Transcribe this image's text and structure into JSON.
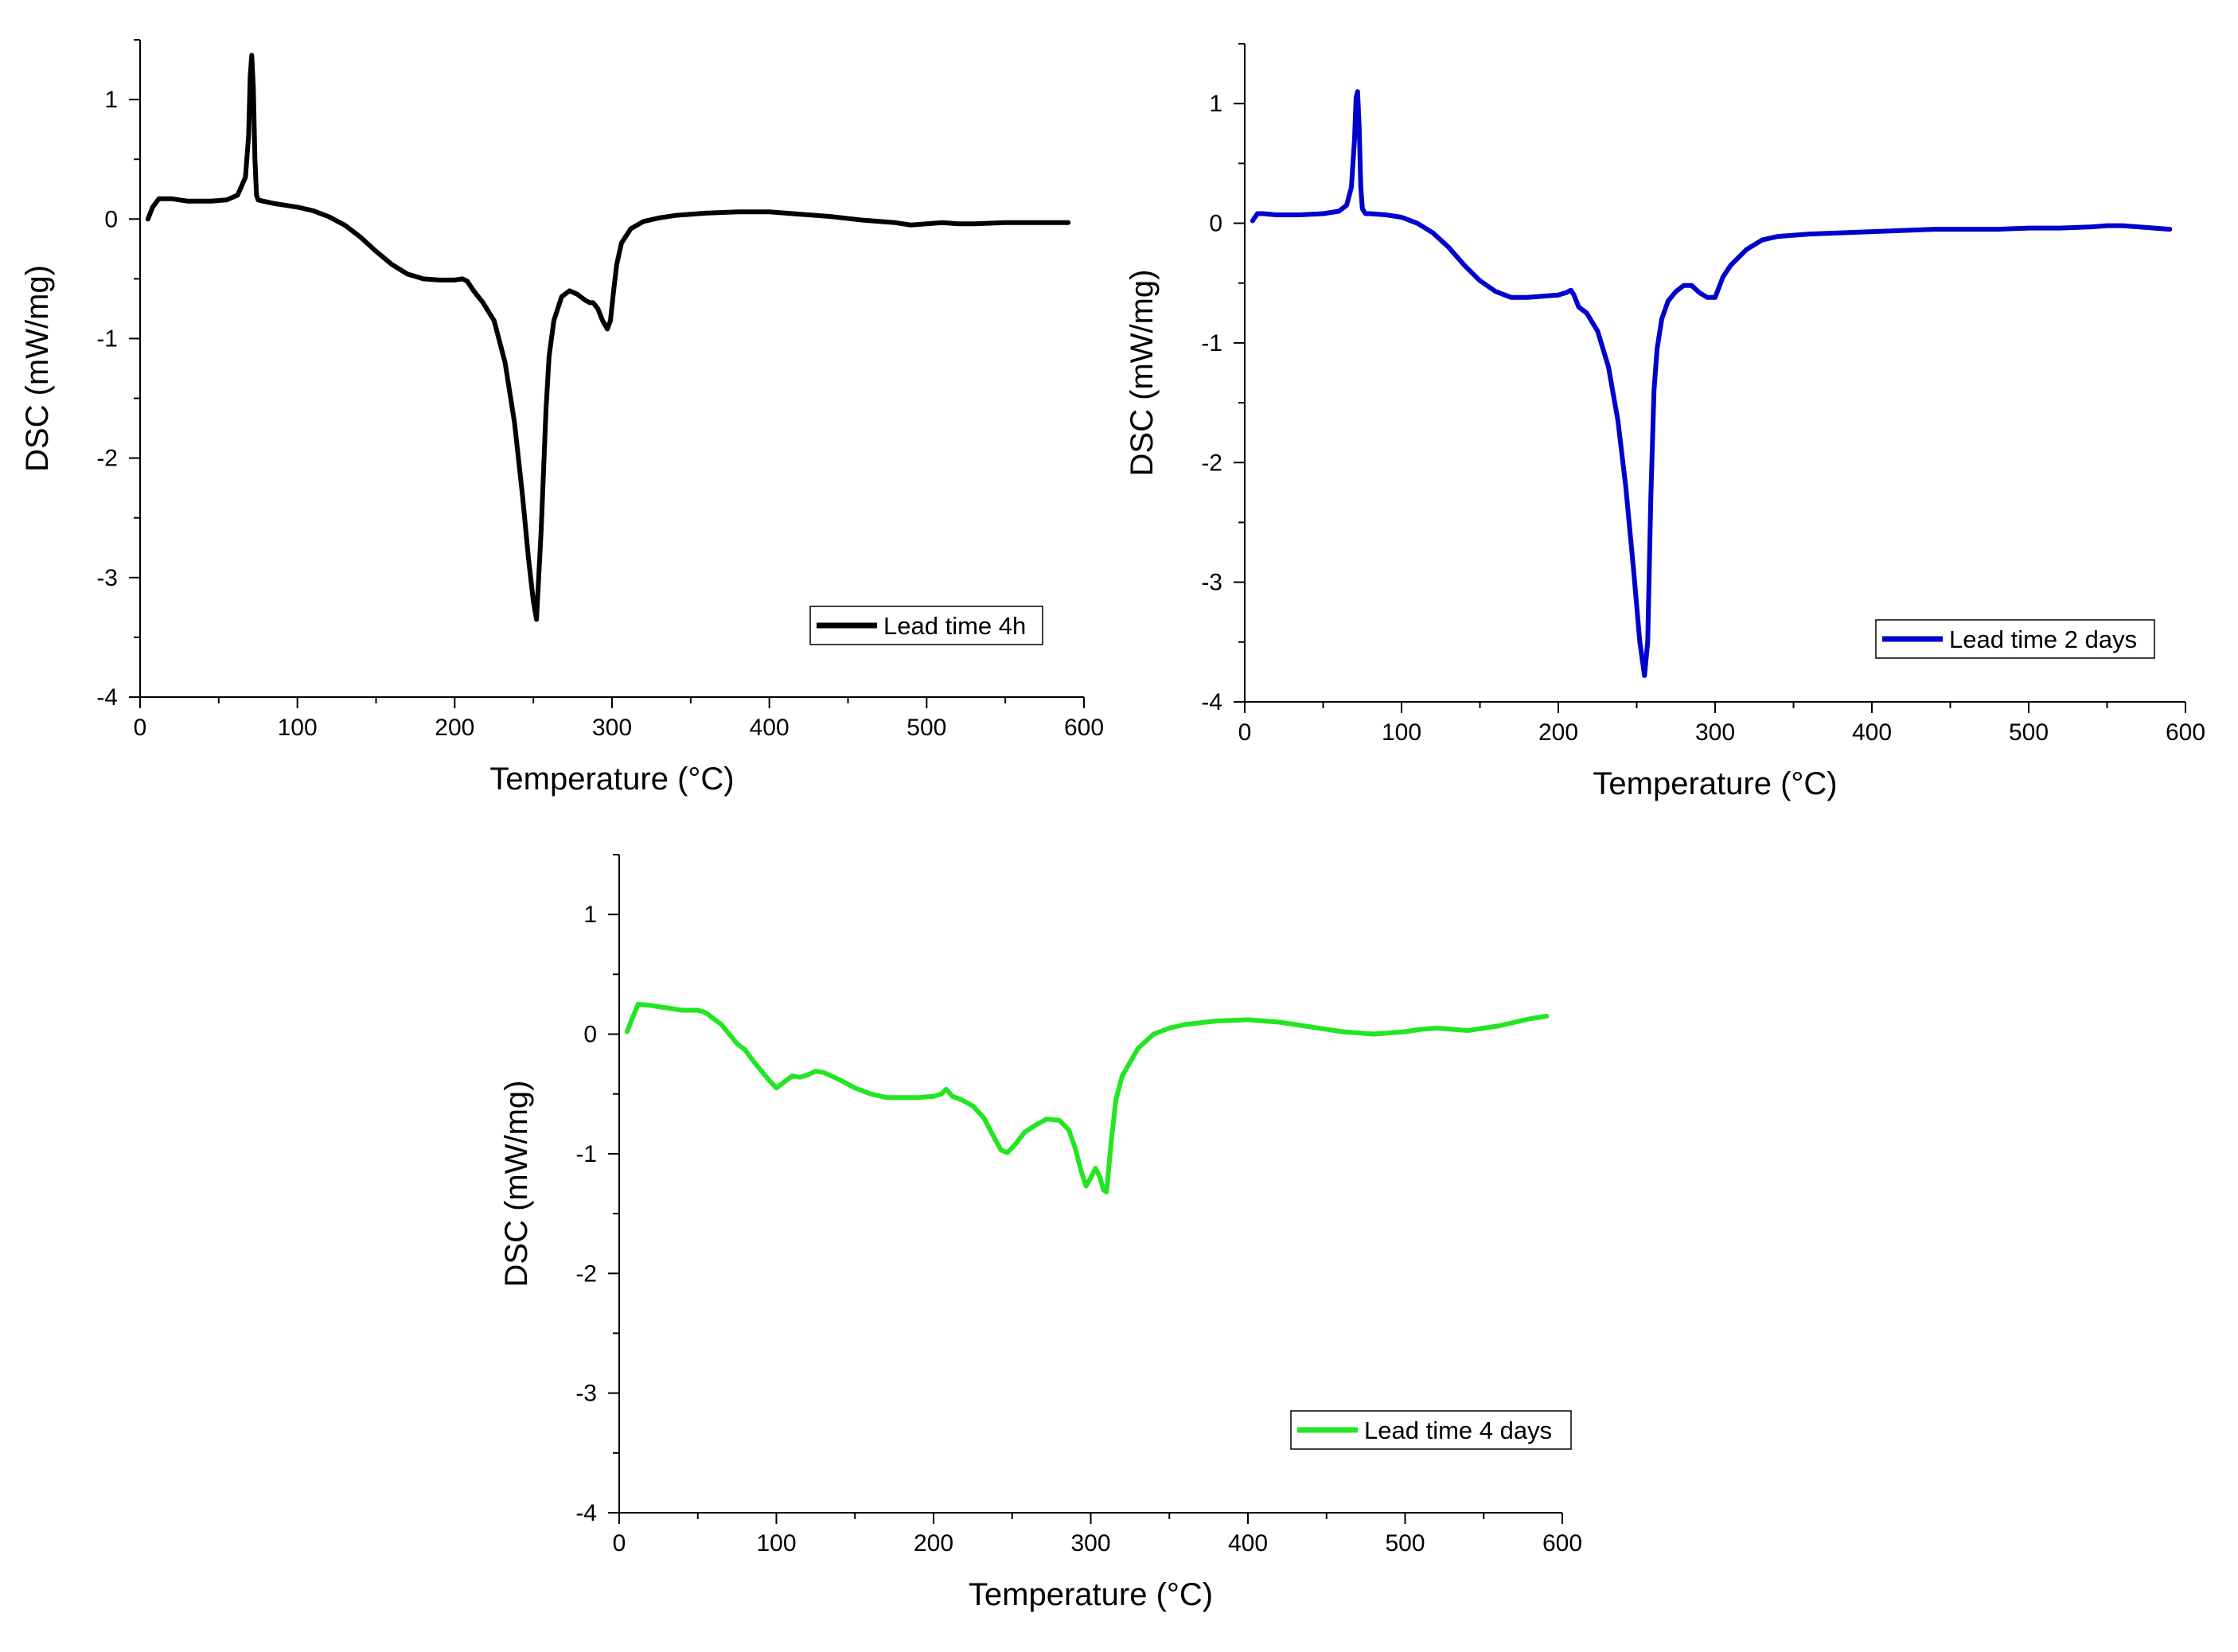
{
  "chart_data": [
    {
      "type": "line",
      "title": "",
      "xlabel": "Temperature (°C)",
      "ylabel": "DSC (mW/mg)",
      "xlim": [
        0,
        600
      ],
      "ylim": [
        -4,
        1.5
      ],
      "xticks": [
        0,
        100,
        200,
        300,
        400,
        500,
        600
      ],
      "yticks": [
        -4,
        -3,
        -2,
        -1,
        0,
        1
      ],
      "grid": false,
      "legend_position": "bottom-right",
      "series": [
        {
          "name": "Lead time 4h",
          "color": "#000000",
          "x": [
            5,
            8,
            12,
            20,
            30,
            45,
            55,
            62,
            67,
            69,
            70,
            71,
            72,
            73,
            74,
            75,
            78,
            85,
            100,
            110,
            120,
            130,
            140,
            150,
            160,
            170,
            180,
            190,
            200,
            205,
            208,
            212,
            218,
            225,
            232,
            238,
            243,
            247,
            250,
            252,
            255,
            258,
            260,
            263,
            268,
            273,
            278,
            283,
            286,
            288,
            291,
            294,
            297,
            299,
            301,
            303,
            306,
            312,
            320,
            330,
            340,
            360,
            380,
            400,
            420,
            440,
            460,
            480,
            490,
            500,
            510,
            520,
            530,
            550,
            570,
            590
          ],
          "values": [
            0.0,
            0.1,
            0.17,
            0.17,
            0.15,
            0.15,
            0.16,
            0.2,
            0.35,
            0.7,
            1.2,
            1.37,
            1.1,
            0.5,
            0.2,
            0.16,
            0.15,
            0.13,
            0.1,
            0.07,
            0.02,
            -0.05,
            -0.15,
            -0.27,
            -0.38,
            -0.46,
            -0.5,
            -0.51,
            -0.51,
            -0.5,
            -0.52,
            -0.6,
            -0.7,
            -0.85,
            -1.2,
            -1.7,
            -2.3,
            -2.85,
            -3.2,
            -3.35,
            -2.6,
            -1.6,
            -1.15,
            -0.85,
            -0.65,
            -0.6,
            -0.63,
            -0.68,
            -0.7,
            -0.7,
            -0.75,
            -0.85,
            -0.92,
            -0.85,
            -0.6,
            -0.38,
            -0.2,
            -0.08,
            -0.02,
            0.01,
            0.03,
            0.05,
            0.06,
            0.06,
            0.04,
            0.02,
            -0.01,
            -0.03,
            -0.05,
            -0.04,
            -0.03,
            -0.04,
            -0.04,
            -0.03,
            -0.03,
            -0.03
          ]
        }
      ]
    },
    {
      "type": "line",
      "title": "",
      "xlabel": "Temperature (°C)",
      "ylabel": "DSC (mW/mg)",
      "xlim": [
        0,
        600
      ],
      "ylim": [
        -4,
        1.5
      ],
      "xticks": [
        0,
        100,
        200,
        300,
        400,
        500,
        600
      ],
      "yticks": [
        -4,
        -3,
        -2,
        -1,
        0,
        1
      ],
      "grid": false,
      "legend_position": "bottom-right",
      "series": [
        {
          "name": "Lead time 2 days",
          "color": "#0000cc",
          "x": [
            5,
            8,
            12,
            20,
            35,
            50,
            60,
            65,
            68,
            70,
            71,
            72,
            73,
            74,
            75,
            77,
            80,
            90,
            100,
            110,
            120,
            130,
            140,
            150,
            160,
            170,
            180,
            190,
            200,
            205,
            208,
            210,
            213,
            218,
            225,
            232,
            238,
            243,
            248,
            252,
            255,
            257,
            259,
            261,
            263,
            266,
            270,
            275,
            280,
            285,
            290,
            295,
            300,
            305,
            310,
            320,
            330,
            340,
            360,
            380,
            400,
            420,
            440,
            460,
            480,
            500,
            520,
            540,
            550,
            560,
            570,
            580,
            590
          ],
          "values": [
            0.02,
            0.08,
            0.08,
            0.07,
            0.07,
            0.08,
            0.1,
            0.15,
            0.3,
            0.7,
            1.05,
            1.1,
            0.8,
            0.3,
            0.12,
            0.08,
            0.08,
            0.07,
            0.05,
            0.0,
            -0.08,
            -0.2,
            -0.35,
            -0.48,
            -0.57,
            -0.62,
            -0.62,
            -0.61,
            -0.6,
            -0.58,
            -0.56,
            -0.6,
            -0.7,
            -0.75,
            -0.9,
            -1.2,
            -1.65,
            -2.2,
            -2.9,
            -3.5,
            -3.78,
            -3.5,
            -2.3,
            -1.4,
            -1.05,
            -0.8,
            -0.65,
            -0.57,
            -0.52,
            -0.52,
            -0.58,
            -0.62,
            -0.62,
            -0.45,
            -0.35,
            -0.22,
            -0.14,
            -0.11,
            -0.09,
            -0.08,
            -0.07,
            -0.06,
            -0.05,
            -0.05,
            -0.05,
            -0.04,
            -0.04,
            -0.03,
            -0.02,
            -0.02,
            -0.03,
            -0.04,
            -0.05
          ]
        }
      ]
    },
    {
      "type": "line",
      "title": "",
      "xlabel": "Temperature (°C)",
      "ylabel": "DSC (mW/mg)",
      "xlim": [
        0,
        600
      ],
      "ylim": [
        -4,
        1.5
      ],
      "xticks": [
        0,
        100,
        200,
        300,
        400,
        500,
        600
      ],
      "yticks": [
        -4,
        -3,
        -2,
        -1,
        0,
        1
      ],
      "grid": false,
      "legend_position": "bottom-right",
      "series": [
        {
          "name": "Lead time 4 days",
          "color": "#22e622",
          "x": [
            5,
            8,
            12,
            20,
            30,
            40,
            50,
            55,
            60,
            65,
            70,
            75,
            80,
            85,
            90,
            95,
            100,
            105,
            110,
            115,
            120,
            125,
            130,
            140,
            150,
            160,
            170,
            180,
            190,
            200,
            205,
            208,
            212,
            218,
            225,
            232,
            238,
            243,
            247,
            252,
            258,
            265,
            272,
            280,
            286,
            290,
            294,
            297,
            300,
            303,
            306,
            308,
            310,
            313,
            316,
            320,
            330,
            340,
            350,
            360,
            380,
            400,
            420,
            440,
            460,
            480,
            500,
            510,
            520,
            530,
            540,
            550,
            560,
            570,
            580,
            590
          ],
          "values": [
            0.02,
            0.12,
            0.25,
            0.24,
            0.22,
            0.2,
            0.2,
            0.18,
            0.13,
            0.08,
            0.0,
            -0.08,
            -0.13,
            -0.22,
            -0.3,
            -0.38,
            -0.45,
            -0.4,
            -0.35,
            -0.36,
            -0.34,
            -0.31,
            -0.32,
            -0.38,
            -0.45,
            -0.5,
            -0.53,
            -0.53,
            -0.53,
            -0.52,
            -0.5,
            -0.46,
            -0.52,
            -0.55,
            -0.6,
            -0.7,
            -0.85,
            -0.97,
            -0.99,
            -0.92,
            -0.82,
            -0.76,
            -0.71,
            -0.72,
            -0.8,
            -0.95,
            -1.15,
            -1.27,
            -1.2,
            -1.12,
            -1.2,
            -1.3,
            -1.32,
            -0.9,
            -0.55,
            -0.35,
            -0.12,
            0.0,
            0.05,
            0.08,
            0.11,
            0.12,
            0.1,
            0.06,
            0.02,
            0.0,
            0.02,
            0.04,
            0.05,
            0.04,
            0.03,
            0.05,
            0.07,
            0.1,
            0.13,
            0.15
          ]
        }
      ]
    }
  ]
}
